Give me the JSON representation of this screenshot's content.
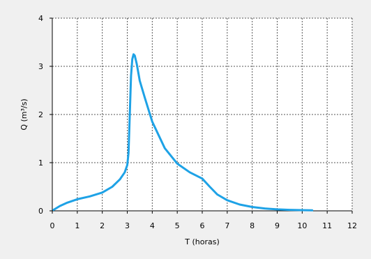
{
  "chart_data": {
    "type": "line",
    "title": "",
    "xlabel": "T (horas)",
    "ylabel": "Q (m³/s)",
    "xlim": [
      0,
      12
    ],
    "ylim": [
      0,
      4
    ],
    "x_ticks": [
      "0",
      "1",
      "2",
      "3",
      "4",
      "5",
      "6",
      "7",
      "8",
      "9",
      "10",
      "11",
      "12"
    ],
    "y_ticks": [
      "0",
      "1",
      "2",
      "3",
      "4"
    ],
    "grid": true,
    "series": [
      {
        "color": "#1ea2e6",
        "x": [
          0.05,
          0.3,
          0.6,
          1.0,
          1.5,
          2.0,
          2.4,
          2.7,
          2.9,
          3.0,
          3.05,
          3.1,
          3.15,
          3.2,
          3.25,
          3.3,
          3.38,
          3.5,
          3.7,
          4.0,
          4.5,
          5.0,
          5.5,
          6.0,
          6.3,
          6.6,
          7.0,
          7.5,
          8.0,
          8.5,
          9.0,
          9.5,
          10.0,
          10.4
        ],
        "y": [
          0.02,
          0.1,
          0.17,
          0.24,
          0.3,
          0.38,
          0.5,
          0.65,
          0.8,
          0.95,
          1.2,
          2.0,
          2.8,
          3.15,
          3.25,
          3.22,
          3.05,
          2.7,
          2.35,
          1.85,
          1.3,
          0.98,
          0.8,
          0.67,
          0.5,
          0.34,
          0.22,
          0.13,
          0.08,
          0.05,
          0.03,
          0.02,
          0.015,
          0.01
        ]
      }
    ]
  }
}
